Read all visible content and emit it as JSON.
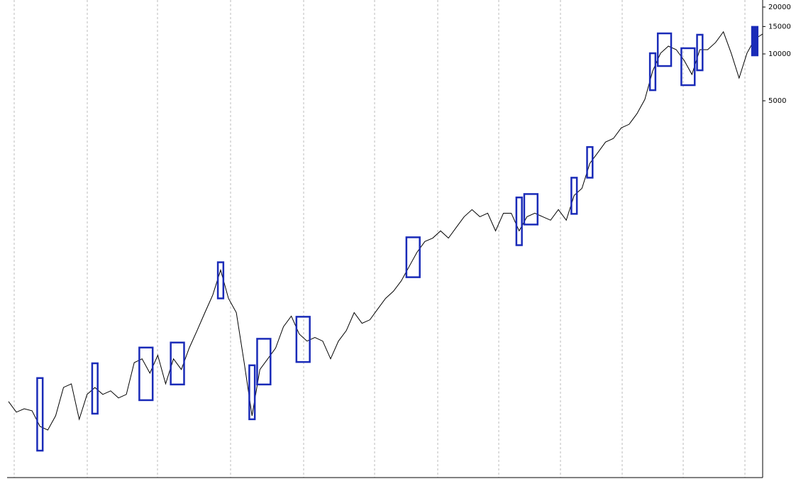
{
  "chart_data": {
    "type": "line",
    "log_scale": true,
    "color": "#000000",
    "box_color": "#1a2bb8",
    "ylim": [
      19,
      22200
    ],
    "yticks": [
      5000,
      10000,
      15000,
      20000
    ],
    "values": [
      58.5,
      50,
      52.6,
      51,
      40.5,
      38.4,
      47.4,
      72.1,
      76,
      45,
      65,
      72,
      65,
      68.5,
      61.7,
      65,
      104,
      110,
      89,
      116,
      76,
      110,
      94,
      129,
      167,
      218,
      283,
      409,
      269,
      218,
      104,
      47.4,
      94,
      110,
      129,
      177,
      207,
      159,
      143,
      151,
      143,
      110,
      143,
      167,
      218,
      186,
      196,
      230,
      269,
      299,
      349,
      431,
      532,
      624,
      656,
      730,
      656,
      769,
      900,
      1000,
      900,
      948,
      730,
      948,
      948,
      730,
      900,
      948,
      900,
      855,
      1000,
      855,
      1233,
      1371,
      1982,
      2317,
      2716,
      2864,
      3350,
      3532,
      4132,
      5100,
      7765,
      10100,
      11220,
      10650,
      9100,
      7380,
      10650,
      10650,
      11830,
      13870,
      10100,
      7000,
      10100,
      12470,
      13430
    ],
    "boxes": [
      {
        "from": 4,
        "to": 4,
        "high": 82.8,
        "low": 28.3
      },
      {
        "from": 11,
        "to": 11,
        "high": 103,
        "low": 48.9
      },
      {
        "from": 17,
        "to": 18,
        "high": 130,
        "low": 59.7
      },
      {
        "from": 21,
        "to": 22,
        "high": 140,
        "low": 75.3
      },
      {
        "from": 27,
        "to": 27,
        "high": 459,
        "low": 269
      },
      {
        "from": 31,
        "to": 31,
        "high": 100,
        "low": 45
      },
      {
        "from": 32,
        "to": 33,
        "high": 148,
        "low": 75.3
      },
      {
        "from": 37,
        "to": 38,
        "high": 205,
        "low": 105
      },
      {
        "from": 51,
        "to": 52,
        "high": 664,
        "low": 368
      },
      {
        "from": 65,
        "to": 65,
        "high": 1197,
        "low": 591
      },
      {
        "from": 66,
        "to": 67,
        "high": 1259,
        "low": 802
      },
      {
        "from": 72,
        "to": 72,
        "high": 1603,
        "low": 939
      },
      {
        "from": 74,
        "to": 74,
        "high": 2523,
        "low": 1603
      },
      {
        "from": 82,
        "to": 82,
        "high": 10100,
        "low": 5850
      },
      {
        "from": 83,
        "to": 84,
        "high": 13550,
        "low": 8360
      },
      {
        "from": 86,
        "to": 87,
        "high": 10880,
        "low": 6300
      },
      {
        "from": 88,
        "to": 88,
        "high": 13280,
        "low": 7850
      },
      {
        "from": 95,
        "to": 95,
        "high": 14920,
        "low": 9790,
        "filled": true
      }
    ]
  }
}
